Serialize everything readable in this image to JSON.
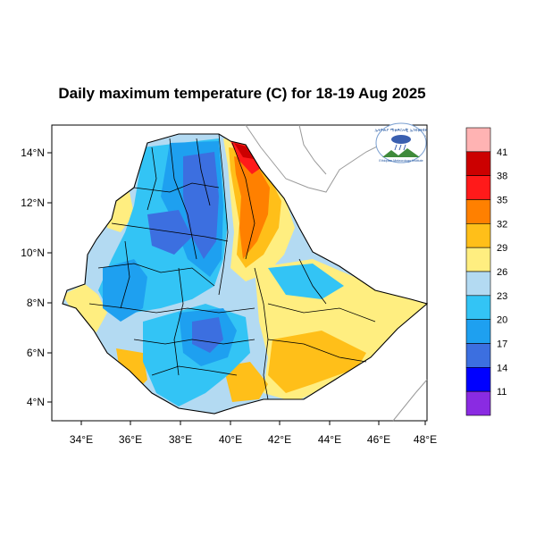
{
  "title": "Daily maximum temperature (C) for 18-19 Aug 2025",
  "map": {
    "x_ticks": [
      "34°E",
      "36°E",
      "38°E",
      "40°E",
      "42°E",
      "44°E",
      "46°E",
      "48°E"
    ],
    "y_ticks": [
      "14°N",
      "12°N",
      "10°N",
      "8°N",
      "6°N",
      "4°N"
    ],
    "lon_range": [
      33,
      48.2
    ],
    "lat_range": [
      3.2,
      15
    ]
  },
  "colorbar": {
    "labels": [
      "41",
      "38",
      "35",
      "32",
      "29",
      "26",
      "23",
      "20",
      "17",
      "14",
      "11"
    ],
    "colors": [
      "#ffb3b3",
      "#cc0000",
      "#ff1a1a",
      "#ff8000",
      "#ffbf19",
      "#ffee80",
      "#b3daf2",
      "#33c4f5",
      "#1ea0f0",
      "#3c6fe0",
      "#0000ff",
      "#8a2be2"
    ]
  },
  "logo": {
    "label": "Ethiopian Meteorology Institute",
    "logo_text": "ኢትዮጵያ ሚቲዎሮሎጂ ኢንስቲትዩት"
  }
}
